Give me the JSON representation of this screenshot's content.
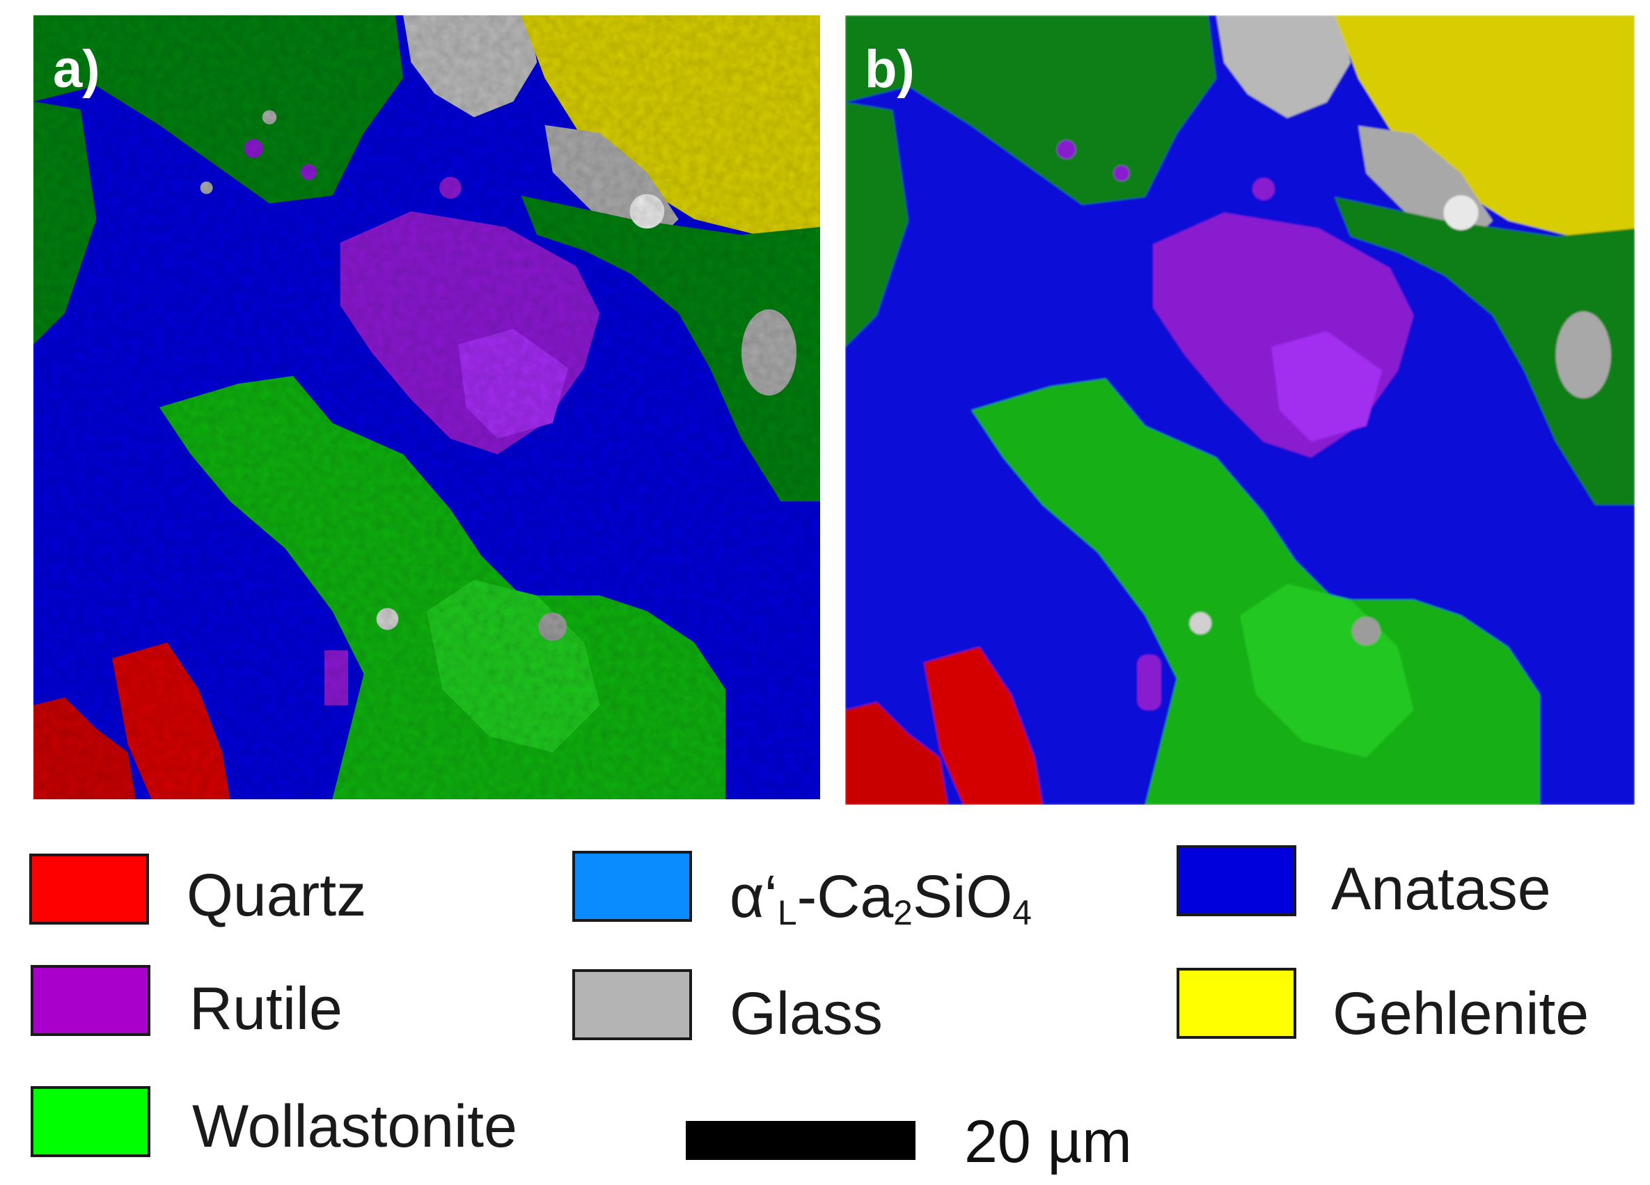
{
  "panels": [
    {
      "label": "a)"
    },
    {
      "label": "b)"
    }
  ],
  "legend": [
    {
      "name": "Quartz",
      "color": "#ff0000"
    },
    {
      "name": "Rutile",
      "color": "#aa00cc"
    },
    {
      "name": "Wollastonite",
      "color": "#00ff00"
    },
    {
      "name_html": "α‘<sub>L</sub>-Ca<sub>2</sub>SiO<sub>4</sub>",
      "name": "α‘L-Ca2SiO4",
      "color": "#0a8cff"
    },
    {
      "name": "Glass",
      "color": "#b4b4b4"
    },
    {
      "name": "Anatase",
      "color": "#0000dd"
    },
    {
      "name": "Gehlenite",
      "color": "#ffff00"
    }
  ],
  "scale_bar": {
    "label": "20 µm",
    "color": "#000000"
  },
  "phase_colors": {
    "anatase": "#0c10d8",
    "wollastonite": "#1fb51f",
    "wollastonite_dark": "#0f7f18",
    "rutile": "#8a1fd0",
    "quartz": "#d40000",
    "glass": "#b8b8b8",
    "gehlenite": "#d7cd00"
  }
}
